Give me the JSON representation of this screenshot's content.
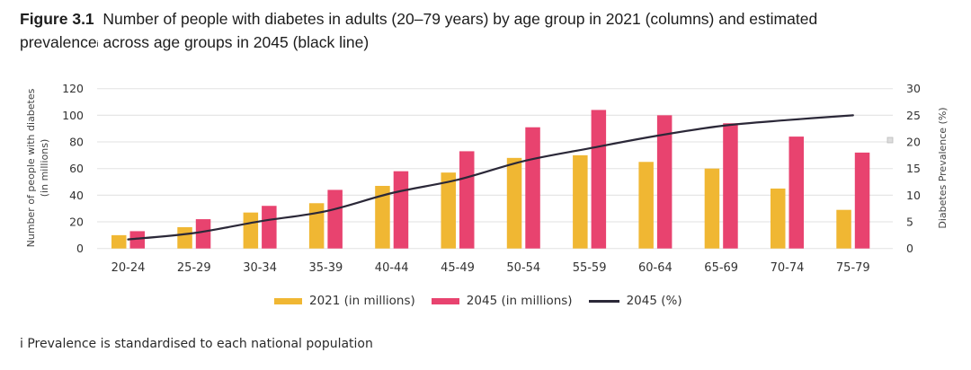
{
  "figure": {
    "label": "Figure 3.1",
    "title_part1": "Number of people with diabetes in adults (20–79 years) by age group in 2021 (columns) and estimated",
    "title_part2a": "prevalence",
    "title_sup": "i",
    "title_part2b": " across age groups in 2045 (black line)",
    "footnote": "i Prevalence is standardised to each national population"
  },
  "colors": {
    "series_2021": "#F0B733",
    "series_2045": "#E8436F",
    "line_2045_pct": "#2B2838",
    "grid": "#E6E6E6"
  },
  "chart_data": {
    "type": "bar",
    "title": "Number of people with diabetes in adults (20–79 years) by age group in 2021 (columns) and estimated prevalence across age groups in 2045 (black line)",
    "xlabel": "",
    "ylabel": "Number of people with diabetes (in millions)",
    "y2label": "Diabetes Prevalence (%)",
    "ylim": [
      0,
      120
    ],
    "y2lim": [
      0,
      30
    ],
    "yticks": [
      0,
      20,
      40,
      60,
      80,
      100,
      120
    ],
    "y2ticks": [
      0,
      5,
      10,
      15,
      20,
      25,
      30
    ],
    "grid": true,
    "legend_position": "bottom-center",
    "categories": [
      "20-24",
      "25-29",
      "30-34",
      "35-39",
      "40-44",
      "45-49",
      "50-54",
      "55-59",
      "60-64",
      "65-69",
      "70-74",
      "75-79"
    ],
    "series": [
      {
        "name": "2021 (in millions)",
        "type": "bar",
        "axis": "left",
        "values": [
          10,
          16,
          27,
          34,
          47,
          57,
          68,
          70,
          65,
          60,
          45,
          29
        ]
      },
      {
        "name": "2045 (in millions)",
        "type": "bar",
        "axis": "left",
        "values": [
          13,
          22,
          32,
          44,
          58,
          73,
          91,
          104,
          100,
          94,
          84,
          72
        ]
      },
      {
        "name": "2045 (%)",
        "type": "line",
        "axis": "right",
        "values": [
          1.7,
          2.9,
          5.1,
          7.0,
          10.4,
          12.9,
          16.4,
          18.8,
          21.1,
          23.0,
          24.1,
          25.0
        ]
      }
    ],
    "legend": [
      "2021 (in millions)",
      "2045 (in millions)",
      "2045 (%)"
    ]
  }
}
